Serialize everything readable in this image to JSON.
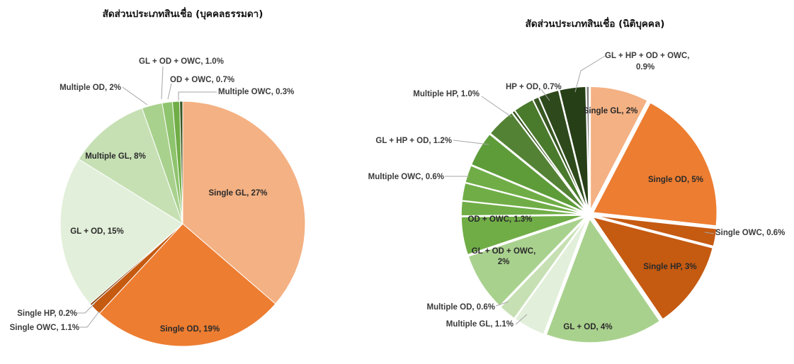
{
  "chart_data": [
    {
      "type": "pie",
      "title": "สัดส่วนประเภทสินเชื่อ (บุคคลธรรมดา)",
      "slices": [
        {
          "label": "Single GL, 27%",
          "value": 27,
          "color": "#f4b183"
        },
        {
          "label": "Single OD, 19%",
          "value": 19,
          "color": "#ed7d31"
        },
        {
          "label": "Single OWC, 1.1%",
          "value": 1.1,
          "color": "#c55a11"
        },
        {
          "label": "Single HP, 0.2%",
          "value": 0.2,
          "color": "#843c0c"
        },
        {
          "label": "GL + OD, 15%",
          "value": 15,
          "color": "#e2efda"
        },
        {
          "label": "Multiple GL, 8%",
          "value": 8,
          "color": "#c6e0b4"
        },
        {
          "label": "Multiple OD, 2%",
          "value": 2,
          "color": "#a9d18e"
        },
        {
          "label": "GL + OD + OWC, 1.0%",
          "value": 1.0,
          "color": "#8fc46e"
        },
        {
          "label": "OD + OWC, 0.7%",
          "value": 0.7,
          "color": "#70ad47"
        },
        {
          "label": "Multiple OWC, 0.3%",
          "value": 0.3,
          "color": "#385723"
        }
      ]
    },
    {
      "type": "pie",
      "title": "สัดส่วนประเภทสินเชื่อ (นิติบุคคล)",
      "slices": [
        {
          "label": "Single GL, 2%",
          "value": 2,
          "color": "#f4b183"
        },
        {
          "label": "Single OD, 5%",
          "value": 5,
          "color": "#ed7d31"
        },
        {
          "label": "Single OWC, 0.6%",
          "value": 0.6,
          "color": "#c55a11"
        },
        {
          "label": "Single HP, 3%",
          "value": 3,
          "color": "#c55a11"
        },
        {
          "label": "GL + OD, 4%",
          "value": 4,
          "color": "#a9d18e"
        },
        {
          "label": "Multiple GL, 1.1%",
          "value": 1.1,
          "color": "#e2efda"
        },
        {
          "label": "Multiple OD, 0.6%",
          "value": 0.6,
          "color": "#c6e0b4"
        },
        {
          "label": "GL + OD + OWC, 2%",
          "value": 2,
          "color": "#a9d18e"
        },
        {
          "label": "OD + OWC, 1.3%",
          "value": 1.3,
          "color": "#70ad47"
        },
        {
          "label": "",
          "value": 0.5,
          "color": "#70ad47"
        },
        {
          "label": "Multiple OWC, 0.6%",
          "value": 0.6,
          "color": "#70ad47"
        },
        {
          "label": "",
          "value": 0.6,
          "color": "#70ad47"
        },
        {
          "label": "GL + HP + OD, 1.2%",
          "value": 1.2,
          "color": "#5e9c3a"
        },
        {
          "label": "Multiple HP, 1.0%",
          "value": 1.0,
          "color": "#548235"
        },
        {
          "label": "",
          "value": 0.1,
          "color": "#385723"
        },
        {
          "label": "HP + OD, 0.7%",
          "value": 0.7,
          "color": "#4a7a2c"
        },
        {
          "label": "",
          "value": 0.2,
          "color": "#385723"
        },
        {
          "label": "",
          "value": 0.7,
          "color": "#2e4a1c"
        },
        {
          "label": "GL + HP + OD + OWC, 0.9%",
          "value": 0.9,
          "color": "#263f17"
        },
        {
          "label": "",
          "value": 0.1,
          "color": "#7f7f7f"
        }
      ]
    }
  ]
}
